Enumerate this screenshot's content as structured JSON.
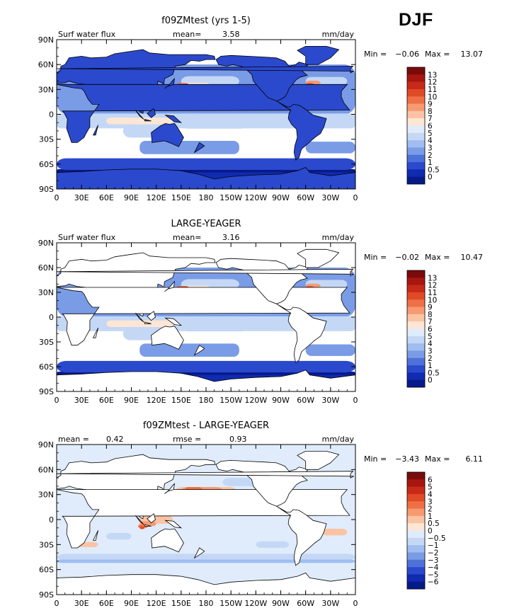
{
  "season": "DJF",
  "colors": {
    "land": "#ffffff",
    "coast": "#000000"
  },
  "scales": {
    "abs": {
      "labels": [
        "13",
        "12",
        "11",
        "10",
        "9",
        "8",
        "7",
        "6",
        "5",
        "4",
        "3",
        "2",
        "1",
        "0.5",
        "0"
      ],
      "colors": [
        "#7a0b0b",
        "#a7160f",
        "#c82a18",
        "#e04a26",
        "#ef7045",
        "#f79a72",
        "#fbc3a4",
        "#fde6d4",
        "#e0ecfb",
        "#c4d8f6",
        "#9fbdf0",
        "#7a9ce6",
        "#4f72d9",
        "#2b49cc",
        "#102bb0",
        "#061a8a"
      ]
    },
    "diff": {
      "labels": [
        "6",
        "5",
        "4",
        "3",
        "2",
        "1",
        "0.5",
        "0",
        "−0.5",
        "−1",
        "−2",
        "−3",
        "−4",
        "−5",
        "−6"
      ],
      "colors": [
        "#7a0b0b",
        "#a7160f",
        "#c82a18",
        "#e04a26",
        "#ef7045",
        "#f79a72",
        "#fbc3a4",
        "#fde6d4",
        "#e0ecfb",
        "#c4d8f6",
        "#9fbdf0",
        "#7a9ce6",
        "#4f72d9",
        "#2b49cc",
        "#102bb0",
        "#061a8a"
      ]
    }
  },
  "chart_data": [
    {
      "type": "heatmap",
      "title": "f09ZMtest (yrs 1-5)",
      "left_label": "Surf water flux",
      "stat1_label": "mean=",
      "stat1_value": "3.58",
      "stat2_label": "",
      "stat2_value": "",
      "units": "mm/day",
      "min_label": "Min =",
      "min_value": "−0.06",
      "max_label": "Max =",
      "max_value": "13.07",
      "scale": "abs",
      "land_masked": false,
      "lat_ticks": [
        "90N",
        "60N",
        "30N",
        "0",
        "30S",
        "60S",
        "90S"
      ],
      "lon_ticks": [
        "0",
        "30E",
        "60E",
        "90E",
        "120E",
        "150E",
        "180",
        "150W",
        "120W",
        "90W",
        "60W",
        "30W",
        "0"
      ]
    },
    {
      "type": "heatmap",
      "title": "LARGE-YEAGER",
      "left_label": "Surf water flux",
      "stat1_label": "mean=",
      "stat1_value": "3.16",
      "stat2_label": "",
      "stat2_value": "",
      "units": "mm/day",
      "min_label": "Min =",
      "min_value": "−0.02",
      "max_label": "Max =",
      "max_value": "10.47",
      "scale": "abs",
      "land_masked": true,
      "lat_ticks": [
        "90N",
        "60N",
        "30N",
        "0",
        "30S",
        "60S",
        "90S"
      ],
      "lon_ticks": [
        "0",
        "30E",
        "60E",
        "90E",
        "120E",
        "150E",
        "180",
        "150W",
        "120W",
        "90W",
        "60W",
        "30W",
        "0"
      ]
    },
    {
      "type": "heatmap",
      "title": "f09ZMtest - LARGE-YEAGER",
      "left_label": "mean =",
      "stat1_label": "",
      "stat1_value": "0.42",
      "stat2_label": "rmse =",
      "stat2_value": "0.93",
      "units": "mm/day",
      "min_label": "Min =",
      "min_value": "−3.43",
      "max_label": "Max =",
      "max_value": "6.11",
      "scale": "diff",
      "land_masked": true,
      "lat_ticks": [
        "90N",
        "60N",
        "30N",
        "0",
        "30S",
        "60S",
        "90S"
      ],
      "lon_ticks": [
        "0",
        "30E",
        "60E",
        "90E",
        "120E",
        "150E",
        "180",
        "150W",
        "120W",
        "90W",
        "60W",
        "30W",
        "0"
      ]
    }
  ]
}
